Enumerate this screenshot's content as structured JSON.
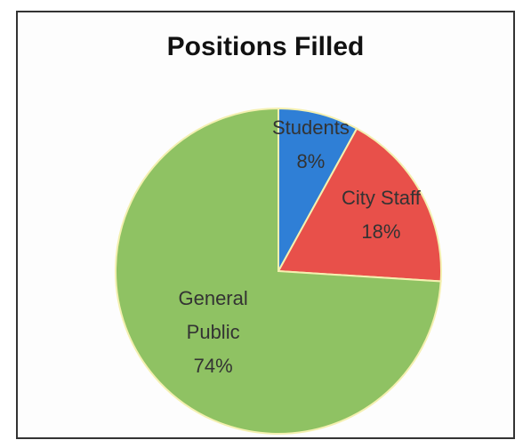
{
  "chart_data": {
    "type": "pie",
    "title": "Positions Filled",
    "categories": [
      "Students",
      "City Staff",
      "General Public"
    ],
    "values": [
      8,
      18,
      74
    ],
    "value_labels": [
      "8%",
      "18%",
      "74%"
    ],
    "colors": [
      "#2f7fd6",
      "#e8504a",
      "#8fc263"
    ]
  }
}
